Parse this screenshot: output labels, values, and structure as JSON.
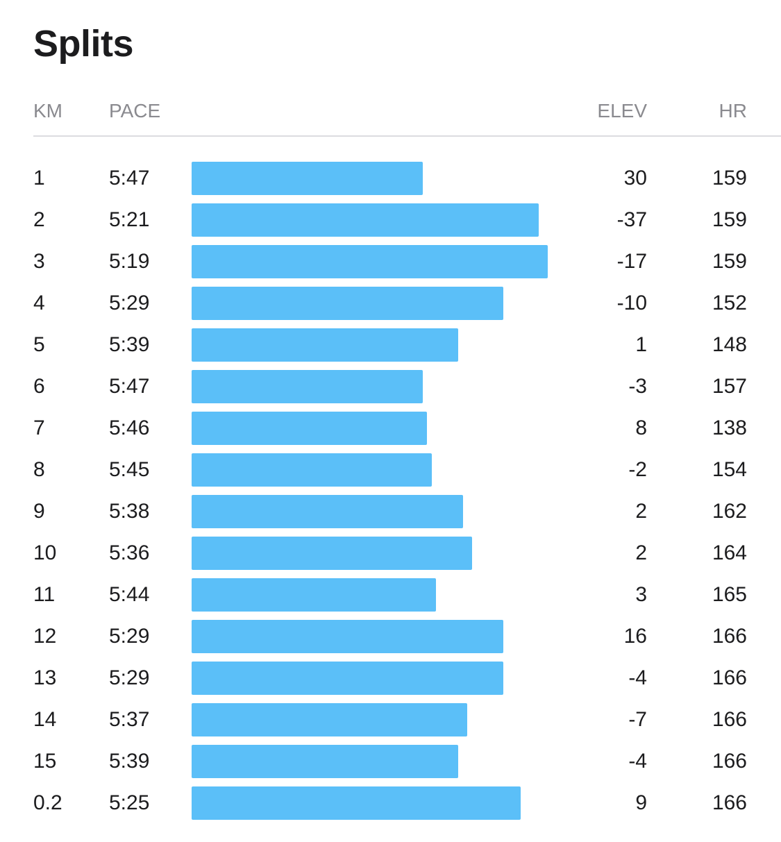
{
  "title": "Splits",
  "columns": {
    "km": "KM",
    "pace": "PACE",
    "elev": "ELEV",
    "hr": "HR"
  },
  "colors": {
    "bar": "#5bbff8",
    "text": "#1c1c1e",
    "header_text": "#8a8a8f",
    "divider": "#dcdce0"
  },
  "splits": [
    {
      "km": "1",
      "pace": "5:47",
      "pace_seconds": 347,
      "elev": "30",
      "hr": "159"
    },
    {
      "km": "2",
      "pace": "5:21",
      "pace_seconds": 321,
      "elev": "-37",
      "hr": "159"
    },
    {
      "km": "3",
      "pace": "5:19",
      "pace_seconds": 319,
      "elev": "-17",
      "hr": "159"
    },
    {
      "km": "4",
      "pace": "5:29",
      "pace_seconds": 329,
      "elev": "-10",
      "hr": "152"
    },
    {
      "km": "5",
      "pace": "5:39",
      "pace_seconds": 339,
      "elev": "1",
      "hr": "148"
    },
    {
      "km": "6",
      "pace": "5:47",
      "pace_seconds": 347,
      "elev": "-3",
      "hr": "157"
    },
    {
      "km": "7",
      "pace": "5:46",
      "pace_seconds": 346,
      "elev": "8",
      "hr": "138"
    },
    {
      "km": "8",
      "pace": "5:45",
      "pace_seconds": 345,
      "elev": "-2",
      "hr": "154"
    },
    {
      "km": "9",
      "pace": "5:38",
      "pace_seconds": 338,
      "elev": "2",
      "hr": "162"
    },
    {
      "km": "10",
      "pace": "5:36",
      "pace_seconds": 336,
      "elev": "2",
      "hr": "164"
    },
    {
      "km": "11",
      "pace": "5:44",
      "pace_seconds": 344,
      "elev": "3",
      "hr": "165"
    },
    {
      "km": "12",
      "pace": "5:29",
      "pace_seconds": 329,
      "elev": "16",
      "hr": "166"
    },
    {
      "km": "13",
      "pace": "5:29",
      "pace_seconds": 329,
      "elev": "-4",
      "hr": "166"
    },
    {
      "km": "14",
      "pace": "5:37",
      "pace_seconds": 337,
      "elev": "-7",
      "hr": "166"
    },
    {
      "km": "15",
      "pace": "5:39",
      "pace_seconds": 339,
      "elev": "-4",
      "hr": "166"
    },
    {
      "km": "0.2",
      "pace": "5:25",
      "pace_seconds": 325,
      "elev": "9",
      "hr": "166"
    }
  ]
}
